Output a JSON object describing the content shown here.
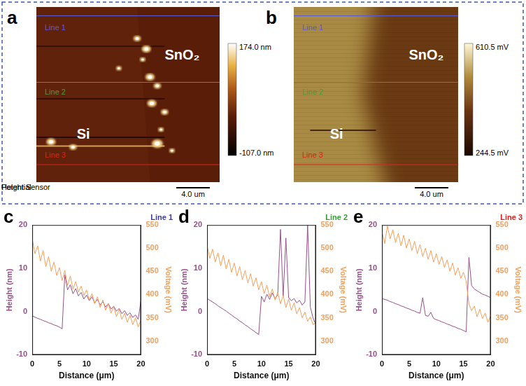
{
  "images": [
    {
      "panel": "a",
      "caption": "Height Sensor",
      "scale_bar": "4.0 um",
      "colorbar_labels": [
        "174.0 nm",
        "-107.0 nm"
      ],
      "regions": [
        "SnO₂",
        "Si"
      ],
      "lines": [
        {
          "label": "Line 1",
          "color": "#5a5ad0"
        },
        {
          "label": "Line 2",
          "color": "#4a9a3a"
        },
        {
          "label": "Line 3",
          "color": "#e0201c"
        }
      ]
    },
    {
      "panel": "b",
      "caption": "Potential",
      "scale_bar": "4.0 um",
      "colorbar_labels": [
        "610.5 mV",
        "244.5 mV"
      ],
      "regions": [
        "SnO₂",
        "Si"
      ],
      "lines": [
        {
          "label": "Line 1",
          "color": "#5a5ad0"
        },
        {
          "label": "Line 2",
          "color": "#4a9a3a"
        },
        {
          "label": "Line 3",
          "color": "#e0201c"
        }
      ]
    }
  ],
  "chart_data": [
    {
      "panel": "c",
      "type": "line",
      "title": "Line 1",
      "color": "#3c3ca0",
      "x_label": "Distance (μm)",
      "grid": false,
      "x": [
        0,
        0.5,
        1,
        1.5,
        2,
        2.5,
        3,
        3.5,
        4,
        4.5,
        5,
        5.5,
        6,
        6.5,
        7,
        7.5,
        8,
        8.5,
        9,
        9.5,
        10,
        10.5,
        11,
        11.5,
        12,
        12.5,
        13,
        13.5,
        14,
        14.5,
        15,
        15.5,
        16,
        16.5,
        17,
        17.5,
        18,
        18.5,
        19,
        19.5,
        20
      ],
      "xlim": [
        0,
        20
      ],
      "xticks": [
        0,
        5,
        10,
        15,
        20
      ],
      "ylim": [
        -10,
        20
      ],
      "yticks": [
        -10,
        0,
        10,
        20
      ],
      "y2lim": [
        270,
        550
      ],
      "y2ticks": [
        300,
        350,
        400,
        450,
        500,
        550
      ],
      "series": [
        {
          "name": "Height (nm)",
          "color": "#9b4f8a",
          "values": [
            -1,
            -1.3,
            -1.6,
            -1.8,
            -2.1,
            -2.3,
            -2.6,
            -2.8,
            -3.1,
            -3.3,
            -3.6,
            -4.0,
            8.5,
            5.0,
            6.2,
            4.1,
            5.3,
            3.6,
            4.4,
            2.9,
            3.8,
            2.5,
            3.4,
            2.0,
            2.8,
            1.5,
            2.3,
            1.0,
            1.8,
            0.6,
            1.2,
            0.1,
            0.7,
            -0.5,
            0.2,
            -0.9,
            -0.3,
            -1.4,
            -0.8,
            -1.8,
            2.5
          ]
        },
        {
          "name": "Voltage (mV)",
          "color": "#f5a05a",
          "axis": "y2",
          "values": [
            520,
            488,
            505,
            472,
            495,
            460,
            482,
            450,
            470,
            441,
            458,
            430,
            452,
            420,
            440,
            412,
            428,
            405,
            418,
            398,
            410,
            388,
            402,
            380,
            395,
            372,
            388,
            366,
            380,
            360,
            374,
            352,
            368,
            346,
            360,
            340,
            355,
            335,
            350,
            330,
            345
          ]
        }
      ]
    },
    {
      "panel": "d",
      "type": "line",
      "title": "Line 2",
      "color": "#3a9a3a",
      "x_label": "Distance (μm)",
      "grid": false,
      "x": [
        0,
        0.5,
        1,
        1.5,
        2,
        2.5,
        3,
        3.5,
        4,
        4.5,
        5,
        5.5,
        6,
        6.5,
        7,
        7.5,
        8,
        8.5,
        9,
        9.5,
        10,
        10.5,
        11,
        11.5,
        12,
        12.5,
        13,
        13.5,
        14,
        14.5,
        15,
        15.5,
        16,
        16.5,
        17,
        17.5,
        18,
        18.5,
        19,
        19.5,
        20
      ],
      "xlim": [
        0,
        20
      ],
      "xticks": [
        0,
        5,
        10,
        15,
        20
      ],
      "ylim": [
        -10,
        20
      ],
      "yticks": [
        -10,
        0,
        10,
        20
      ],
      "y2lim": [
        270,
        550
      ],
      "y2ticks": [
        300,
        350,
        400,
        450,
        500,
        550
      ],
      "series": [
        {
          "name": "Height (nm)",
          "color": "#9b4f8a",
          "values": [
            3.0,
            2.6,
            2.2,
            1.8,
            1.3,
            0.9,
            0.5,
            0.1,
            -0.4,
            -0.8,
            -1.3,
            -1.7,
            -2.2,
            -2.6,
            -3.1,
            -3.5,
            -4.0,
            -4.4,
            -4.9,
            -5.3,
            3.5,
            2.2,
            4.0,
            2.8,
            4.3,
            3.0,
            3.8,
            19.0,
            3.5,
            17.0,
            3.2,
            2.5,
            3.0,
            2.0,
            2.6,
            1.5,
            2.2,
            20.0,
            1.0,
            -1.5,
            -3.0
          ]
        },
        {
          "name": "Voltage (mV)",
          "color": "#f5a05a",
          "axis": "y2",
          "values": [
            505,
            478,
            498,
            470,
            490,
            462,
            485,
            455,
            476,
            448,
            468,
            440,
            460,
            432,
            452,
            425,
            445,
            418,
            436,
            410,
            428,
            402,
            420,
            395,
            412,
            388,
            405,
            380,
            398,
            372,
            390,
            366,
            382,
            358,
            372,
            350,
            362,
            342,
            352,
            335,
            340
          ]
        }
      ]
    },
    {
      "panel": "e",
      "type": "line",
      "title": "Line 3",
      "color": "#e0201c",
      "x_label": "Distance (μm)",
      "grid": false,
      "x": [
        0,
        0.5,
        1,
        1.5,
        2,
        2.5,
        3,
        3.5,
        4,
        4.5,
        5,
        5.5,
        6,
        6.5,
        7,
        7.5,
        8,
        8.5,
        9,
        9.5,
        10,
        10.5,
        11,
        11.5,
        12,
        12.5,
        13,
        13.5,
        14,
        14.5,
        15,
        15.5,
        16,
        16.5,
        17,
        17.5,
        18,
        18.5,
        19,
        19.5,
        20
      ],
      "xlim": [
        0,
        20
      ],
      "xticks": [
        0,
        5,
        10,
        15,
        20
      ],
      "ylim": [
        -10,
        20
      ],
      "yticks": [
        -10,
        0,
        10,
        20
      ],
      "y2lim": [
        270,
        550
      ],
      "y2ticks": [
        300,
        350,
        400,
        450,
        500,
        550
      ],
      "series": [
        {
          "name": "Height (nm)",
          "color": "#9b4f8a",
          "values": [
            3.0,
            2.8,
            2.6,
            2.3,
            2.1,
            1.8,
            1.6,
            1.3,
            1.1,
            0.8,
            0.6,
            0.3,
            0.1,
            -0.2,
            -0.4,
            3.2,
            -0.9,
            -1.1,
            -0.2,
            -1.6,
            -1.9,
            -2.1,
            -2.4,
            -2.6,
            -2.9,
            -3.1,
            -3.4,
            -3.6,
            -3.9,
            -4.1,
            -4.4,
            -4.7,
            12.5,
            6.0,
            5.2,
            4.8,
            4.4,
            4.0,
            3.8,
            3.5,
            3.2
          ]
        },
        {
          "name": "Voltage (mV)",
          "color": "#f5a05a",
          "axis": "y2",
          "values": [
            535,
            510,
            548,
            520,
            540,
            512,
            532,
            505,
            528,
            500,
            520,
            495,
            515,
            488,
            508,
            482,
            500,
            476,
            495,
            470,
            488,
            465,
            482,
            458,
            475,
            450,
            468,
            442,
            458,
            435,
            448,
            428,
            380,
            365,
            375,
            352,
            368,
            348,
            360,
            340,
            355
          ]
        }
      ]
    }
  ]
}
